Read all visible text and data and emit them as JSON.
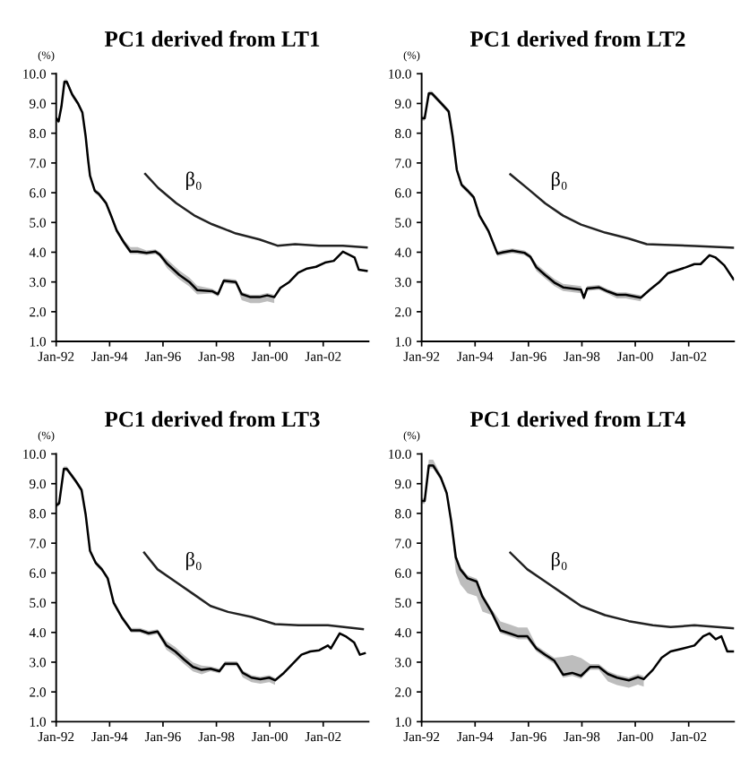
{
  "chart_data": [
    {
      "type": "line",
      "title": "PC1 derived from LT1",
      "ylabel": "(%)",
      "xlim": [
        "1992-01-01",
        "2003-09-13"
      ],
      "ylim": [
        1,
        10
      ],
      "xticks": [
        {
          "value": "1992-01-01",
          "label": "Jan-92"
        },
        {
          "value": "1994-01-01",
          "label": "Jan-94"
        },
        {
          "value": "1996-01-01",
          "label": "Jan-96"
        },
        {
          "value": "1998-01-01",
          "label": "Jan-98"
        },
        {
          "value": "2000-01-01",
          "label": "Jan-00"
        },
        {
          "value": "2002-01-01",
          "label": "Jan-02"
        }
      ],
      "yticks": [
        {
          "value": 1,
          "label": "1.0"
        },
        {
          "value": 2,
          "label": "2.0"
        },
        {
          "value": 3,
          "label": "3.0"
        },
        {
          "value": 4,
          "label": "4.0"
        },
        {
          "value": 5,
          "label": "5.0"
        },
        {
          "value": 6,
          "label": "6.0"
        },
        {
          "value": 7,
          "label": "7.0"
        },
        {
          "value": 8,
          "label": "8.0"
        },
        {
          "value": 9,
          "label": "9.0"
        },
        {
          "value": 10,
          "label": "10.0"
        }
      ],
      "grid": false,
      "annotations": [
        "β₀"
      ],
      "series": [
        {
          "color": "#000000",
          "x": [
            "1992-01-01",
            "1992-02-03",
            "1992-03-13",
            "1992-04-23",
            "1992-05-25",
            "1992-08-07",
            "1992-10-26",
            "1992-12-24",
            "1993-02-07",
            "1993-03-13",
            "1993-04-08",
            "1993-06-13",
            "1993-08-07",
            "1993-11-14",
            "1994-01-19",
            "1994-04-08",
            "1994-07-15",
            "1994-10-12",
            "1995-01-19",
            "1995-05-21",
            "1995-09-20",
            "1995-11-18",
            "1996-02-28",
            "1996-08-11",
            "1996-12-27",
            "1997-04-12",
            "1997-11-03",
            "1998-01-23",
            "1998-04-12",
            "1998-09-24",
            "1998-12-13",
            "1999-04-12",
            "1999-08-14",
            "1999-11-28",
            "2000-03-02",
            "2000-05-25",
            "2000-09-24",
            "2001-01-23",
            "2001-05-25",
            "2001-09-24",
            "2002-01-26",
            "2002-05-25",
            "2002-09-27",
            "2002-12-17",
            "2003-03-06",
            "2003-05-03",
            "2003-08-18"
          ],
          "values": [
            8.5,
            8.4,
            8.9,
            9.73,
            9.73,
            9.3,
            9.0,
            8.7,
            7.9,
            7.1,
            6.57,
            6.06,
            5.96,
            5.65,
            5.24,
            4.73,
            4.33,
            4.02,
            4.02,
            3.98,
            4.02,
            3.92,
            3.61,
            3.24,
            3.0,
            2.73,
            2.69,
            2.59,
            3.04,
            3.0,
            2.59,
            2.49,
            2.49,
            2.55,
            2.49,
            2.8,
            3.0,
            3.31,
            3.45,
            3.51,
            3.65,
            3.71,
            4.02,
            3.92,
            3.82,
            3.41,
            3.37
          ],
          "lower": [
            8.42,
            8.32,
            8.82,
            9.65,
            9.65,
            9.22,
            8.92,
            8.62,
            7.82,
            7.02,
            6.49,
            5.98,
            5.88,
            5.57,
            5.16,
            4.65,
            4.25,
            3.94,
            3.94,
            3.9,
            3.94,
            3.84,
            3.46,
            3.09,
            2.85,
            2.58,
            2.61,
            2.51,
            2.96,
            2.92,
            2.39,
            2.29,
            2.29,
            2.35,
            2.29,
            null,
            null,
            null,
            null,
            null,
            null,
            null,
            null,
            null,
            null,
            null,
            null
          ],
          "upper": [
            8.58,
            8.48,
            8.98,
            9.81,
            9.81,
            9.38,
            9.08,
            8.78,
            7.98,
            7.18,
            6.65,
            6.14,
            6.04,
            5.73,
            5.32,
            4.81,
            4.41,
            4.17,
            4.17,
            4.06,
            4.1,
            4.0,
            3.76,
            3.39,
            3.15,
            2.88,
            2.77,
            2.67,
            3.12,
            3.08,
            2.67,
            2.57,
            2.57,
            2.63,
            2.57,
            null,
            null,
            null,
            null,
            null,
            null,
            null,
            null,
            null,
            null,
            null,
            null
          ]
        },
        {
          "color": "#222222",
          "x": [
            "1995-05-03",
            "1995-10-28",
            "1996-07-01",
            "1997-03-02",
            "1997-11-03",
            "1998-09-24",
            "1999-08-14",
            "2000-04-15",
            "2000-12-13",
            "2001-11-03",
            "2002-09-27",
            "2003-08-18"
          ],
          "values": [
            6.63,
            6.16,
            5.65,
            5.24,
            4.94,
            4.63,
            4.43,
            4.22,
            4.27,
            4.22,
            4.22,
            4.16
          ]
        }
      ]
    },
    {
      "type": "line",
      "title": "PC1 derived from LT2",
      "ylabel": "(%)",
      "xlim": [
        "1992-01-01",
        "2003-09-13"
      ],
      "ylim": [
        1,
        10
      ],
      "xticks": [
        {
          "value": "1992-01-01",
          "label": "Jan-92"
        },
        {
          "value": "1994-01-01",
          "label": "Jan-94"
        },
        {
          "value": "1996-01-01",
          "label": "Jan-96"
        },
        {
          "value": "1998-01-01",
          "label": "Jan-98"
        },
        {
          "value": "2000-01-01",
          "label": "Jan-00"
        },
        {
          "value": "2002-01-01",
          "label": "Jan-02"
        }
      ],
      "yticks": [
        {
          "value": 1,
          "label": "1.0"
        },
        {
          "value": 2,
          "label": "2.0"
        },
        {
          "value": 3,
          "label": "3.0"
        },
        {
          "value": 4,
          "label": "4.0"
        },
        {
          "value": 5,
          "label": "5.0"
        },
        {
          "value": 6,
          "label": "6.0"
        },
        {
          "value": 7,
          "label": "7.0"
        },
        {
          "value": 8,
          "label": "8.0"
        },
        {
          "value": 9,
          "label": "9.0"
        },
        {
          "value": 10,
          "label": "10.0"
        }
      ],
      "grid": false,
      "annotations": [
        "β₀"
      ],
      "series": [
        {
          "color": "#000000",
          "x": [
            "1992-01-01",
            "1992-02-11",
            "1992-04-08",
            "1992-05-18",
            "1992-09-20",
            "1993-01-05",
            "1993-02-28",
            "1993-04-26",
            "1993-07-01",
            "1993-09-20",
            "1993-12-13",
            "1994-03-02",
            "1994-07-01",
            "1994-11-03",
            "1995-01-23",
            "1995-05-25",
            "1995-11-07",
            "1996-01-26",
            "1996-04-19",
            "1996-08-18",
            "1996-12-20",
            "1997-04-19",
            "1997-08-21",
            "1997-12-20",
            "1998-01-28",
            "1998-03-13",
            "1998-08-21",
            "1998-12-24",
            "1999-04-26",
            "1999-08-25",
            "1999-12-27",
            "2000-03-17",
            "2000-07-19",
            "2000-11-18",
            "2001-03-20",
            "2001-07-19",
            "2001-11-21",
            "2002-03-20",
            "2002-06-13",
            "2002-10-12",
            "2003-01-05",
            "2003-05-03",
            "2003-09-06"
          ],
          "values": [
            8.5,
            8.5,
            9.34,
            9.34,
            9.02,
            8.73,
            7.9,
            6.77,
            6.26,
            6.07,
            5.85,
            5.23,
            4.72,
            3.95,
            4.0,
            4.05,
            3.98,
            3.85,
            3.49,
            3.23,
            2.98,
            2.82,
            2.78,
            2.74,
            2.47,
            2.78,
            2.82,
            2.68,
            2.57,
            2.57,
            2.51,
            2.47,
            2.74,
            2.98,
            3.29,
            3.39,
            3.49,
            3.6,
            3.6,
            3.9,
            3.82,
            3.56,
            3.09
          ],
          "lower": [
            8.42,
            8.42,
            9.26,
            9.26,
            8.94,
            8.65,
            7.82,
            6.69,
            6.18,
            5.99,
            5.77,
            5.15,
            4.64,
            3.87,
            3.92,
            3.97,
            3.9,
            3.77,
            3.37,
            3.11,
            2.86,
            2.7,
            2.66,
            2.62,
            2.39,
            2.7,
            2.74,
            2.6,
            2.45,
            2.45,
            2.39,
            2.35,
            null,
            null,
            null,
            null,
            null,
            null,
            null,
            null,
            null,
            null,
            null
          ],
          "upper": [
            8.58,
            8.58,
            9.42,
            9.42,
            9.1,
            8.81,
            7.98,
            6.85,
            6.34,
            6.15,
            5.93,
            5.31,
            4.8,
            4.03,
            4.08,
            4.13,
            4.06,
            3.93,
            3.61,
            3.35,
            3.1,
            2.94,
            2.9,
            2.86,
            2.55,
            2.86,
            2.9,
            2.76,
            2.65,
            2.65,
            2.59,
            2.55,
            null,
            null,
            null,
            null,
            null,
            null,
            null,
            null,
            null,
            null,
            null
          ]
        },
        {
          "color": "#222222",
          "x": [
            "1995-04-28",
            "1995-12-17",
            "1996-08-18",
            "1997-04-19",
            "1997-12-20",
            "1998-11-14",
            "1999-10-05",
            "2000-06-06",
            "2001-02-07",
            "2002-03-20",
            "2003-09-06"
          ],
          "values": [
            6.62,
            6.15,
            5.64,
            5.23,
            4.93,
            4.66,
            4.46,
            4.27,
            4.25,
            4.21,
            4.15
          ]
        }
      ]
    },
    {
      "type": "line",
      "title": "PC1 derived from LT3",
      "ylabel": "(%)",
      "xlim": [
        "1992-01-01",
        "2003-09-13"
      ],
      "ylim": [
        1,
        10
      ],
      "xticks": [
        {
          "value": "1992-01-01",
          "label": "Jan-92"
        },
        {
          "value": "1994-01-01",
          "label": "Jan-94"
        },
        {
          "value": "1996-01-01",
          "label": "Jan-96"
        },
        {
          "value": "1998-01-01",
          "label": "Jan-98"
        },
        {
          "value": "2000-01-01",
          "label": "Jan-00"
        },
        {
          "value": "2002-01-01",
          "label": "Jan-02"
        }
      ],
      "yticks": [
        {
          "value": 1,
          "label": "1.0"
        },
        {
          "value": 2,
          "label": "2.0"
        },
        {
          "value": 3,
          "label": "3.0"
        },
        {
          "value": 4,
          "label": "4.0"
        },
        {
          "value": 5,
          "label": "5.0"
        },
        {
          "value": 6,
          "label": "6.0"
        },
        {
          "value": 7,
          "label": "7.0"
        },
        {
          "value": 8,
          "label": "8.0"
        },
        {
          "value": 9,
          "label": "9.0"
        },
        {
          "value": 10,
          "label": "10.0"
        }
      ],
      "grid": false,
      "annotations": [
        "β₀"
      ],
      "series": [
        {
          "color": "#000000",
          "x": [
            "1992-01-01",
            "1992-02-11",
            "1992-04-15",
            "1992-05-25",
            "1992-09-24",
            "1992-12-13",
            "1993-02-07",
            "1993-04-08",
            "1993-06-27",
            "1993-09-17",
            "1993-12-06",
            "1994-02-25",
            "1994-06-24",
            "1994-10-23",
            "1995-02-21",
            "1995-06-20",
            "1995-10-19",
            "1996-02-18",
            "1996-06-17",
            "1996-10-15",
            "1997-02-14",
            "1997-06-13",
            "1997-10-12",
            "1998-02-11",
            "1998-04-28",
            "1998-10-08",
            "1998-12-27",
            "1999-04-26",
            "1999-08-25",
            "1999-12-24",
            "2000-03-13",
            "2000-07-12",
            "2000-11-11",
            "2001-03-09",
            "2001-07-08",
            "2001-11-07",
            "2002-03-06",
            "2002-04-15",
            "2002-08-14",
            "2002-11-03",
            "2003-02-28",
            "2003-05-18",
            "2003-07-23"
          ],
          "values": [
            8.27,
            8.34,
            9.5,
            9.5,
            9.09,
            8.79,
            7.97,
            6.74,
            6.33,
            6.12,
            5.82,
            5.0,
            4.48,
            4.07,
            4.07,
            3.97,
            4.03,
            3.56,
            3.36,
            3.09,
            2.84,
            2.74,
            2.78,
            2.7,
            2.95,
            2.95,
            2.64,
            2.48,
            2.43,
            2.48,
            2.39,
            2.64,
            2.95,
            3.25,
            3.36,
            3.4,
            3.56,
            3.46,
            3.97,
            3.87,
            3.66,
            3.25,
            3.3
          ],
          "lower": [
            8.19,
            8.26,
            9.42,
            9.42,
            9.01,
            8.71,
            7.89,
            6.66,
            6.25,
            6.04,
            5.74,
            4.92,
            4.4,
            3.99,
            3.99,
            3.89,
            3.95,
            3.41,
            3.21,
            2.94,
            2.69,
            2.59,
            2.7,
            2.62,
            2.87,
            2.87,
            2.49,
            2.33,
            2.28,
            2.33,
            2.24,
            null,
            null,
            null,
            null,
            null,
            null,
            null,
            null,
            null,
            null,
            null,
            null
          ],
          "upper": [
            8.35,
            8.42,
            9.58,
            9.58,
            9.17,
            8.87,
            8.05,
            6.82,
            6.41,
            6.2,
            5.9,
            5.08,
            4.56,
            4.15,
            4.15,
            4.05,
            4.11,
            3.71,
            3.51,
            3.24,
            2.99,
            2.89,
            2.86,
            2.78,
            3.03,
            3.03,
            2.72,
            2.56,
            2.51,
            2.56,
            2.47,
            null,
            null,
            null,
            null,
            null,
            null,
            null,
            null,
            null,
            null,
            null,
            null
          ]
        },
        {
          "color": "#222222",
          "x": [
            "1995-04-19",
            "1995-10-19",
            "1996-06-17",
            "1997-02-14",
            "1997-10-12",
            "1998-06-09",
            "1999-04-26",
            "2000-03-13",
            "2001-01-28",
            "2002-03-06",
            "2003-06-27"
          ],
          "values": [
            6.68,
            6.12,
            5.71,
            5.3,
            4.89,
            4.69,
            4.52,
            4.28,
            4.24,
            4.24,
            4.11
          ]
        }
      ]
    },
    {
      "type": "line",
      "title": "PC1 derived from LT4",
      "ylabel": "(%)",
      "xlim": [
        "1992-01-01",
        "2003-09-13"
      ],
      "ylim": [
        1,
        10
      ],
      "xticks": [
        {
          "value": "1992-01-01",
          "label": "Jan-92"
        },
        {
          "value": "1994-01-01",
          "label": "Jan-94"
        },
        {
          "value": "1996-01-01",
          "label": "Jan-96"
        },
        {
          "value": "1998-01-01",
          "label": "Jan-98"
        },
        {
          "value": "2000-01-01",
          "label": "Jan-00"
        },
        {
          "value": "2002-01-01",
          "label": "Jan-02"
        }
      ],
      "yticks": [
        {
          "value": 1,
          "label": "1.0"
        },
        {
          "value": 2,
          "label": "2.0"
        },
        {
          "value": 3,
          "label": "3.0"
        },
        {
          "value": 4,
          "label": "4.0"
        },
        {
          "value": 5,
          "label": "5.0"
        },
        {
          "value": 6,
          "label": "6.0"
        },
        {
          "value": 7,
          "label": "7.0"
        },
        {
          "value": 8,
          "label": "8.0"
        },
        {
          "value": 9,
          "label": "9.0"
        },
        {
          "value": 10,
          "label": "10.0"
        }
      ],
      "grid": false,
      "annotations": [
        "β₀"
      ],
      "series": [
        {
          "color": "#000000",
          "x": [
            "1992-01-01",
            "1992-02-11",
            "1992-04-08",
            "1992-06-06",
            "1992-09-20",
            "1992-12-09",
            "1993-02-07",
            "1993-04-12",
            "1993-06-13",
            "1993-09-20",
            "1994-01-23",
            "1994-04-12",
            "1994-08-14",
            "1994-12-13",
            "1995-04-15",
            "1995-08-14",
            "1995-12-17",
            "1996-04-19",
            "1996-08-18",
            "1996-12-20",
            "1997-04-19",
            "1997-08-21",
            "1997-12-20",
            "1998-04-23",
            "1998-08-21",
            "1998-12-24",
            "1999-04-26",
            "1999-10-05",
            "2000-02-07",
            "2000-04-26",
            "2000-08-28",
            "2000-12-27",
            "2001-04-28",
            "2001-10-12",
            "2002-03-20",
            "2002-07-18",
            "2002-10-12",
            "2003-01-05",
            "2003-03-24",
            "2003-06-13",
            "2003-09-06"
          ],
          "values": [
            8.42,
            8.42,
            9.61,
            9.61,
            9.2,
            8.68,
            7.76,
            6.53,
            6.12,
            5.82,
            5.71,
            5.2,
            4.69,
            4.07,
            3.97,
            3.87,
            3.87,
            3.46,
            3.25,
            3.05,
            2.58,
            2.64,
            2.54,
            2.84,
            2.84,
            2.6,
            2.48,
            2.39,
            2.5,
            2.43,
            2.74,
            3.15,
            3.36,
            3.46,
            3.56,
            3.87,
            3.97,
            3.77,
            3.87,
            3.36,
            3.36
          ],
          "lower": [
            8.32,
            8.32,
            9.51,
            9.51,
            9.1,
            8.58,
            7.66,
            6.03,
            5.62,
            5.32,
            5.21,
            4.7,
            4.59,
            3.97,
            3.87,
            3.77,
            3.77,
            3.36,
            3.15,
            2.95,
            2.48,
            2.54,
            2.44,
            2.74,
            2.74,
            2.35,
            2.23,
            2.14,
            2.25,
            2.18,
            null,
            null,
            null,
            null,
            null,
            null,
            null,
            null,
            null,
            null,
            null
          ],
          "upper": [
            8.52,
            8.52,
            9.81,
            9.81,
            9.3,
            8.78,
            7.86,
            6.63,
            6.22,
            5.92,
            5.81,
            5.3,
            4.79,
            4.37,
            4.27,
            4.17,
            4.17,
            3.56,
            3.35,
            3.15,
            3.18,
            3.24,
            3.14,
            2.94,
            2.94,
            2.7,
            2.58,
            2.49,
            2.6,
            2.53,
            null,
            null,
            null,
            null,
            null,
            null,
            null,
            null,
            null,
            null,
            null
          ]
        },
        {
          "color": "#222222",
          "x": [
            "1995-04-28",
            "1995-12-17",
            "1996-08-18",
            "1997-04-19",
            "1997-12-20",
            "1998-11-14",
            "1999-10-05",
            "2000-08-28",
            "2001-04-28",
            "2002-03-20",
            "2003-09-06"
          ],
          "values": [
            6.68,
            6.12,
            5.71,
            5.3,
            4.89,
            4.58,
            4.38,
            4.24,
            4.18,
            4.24,
            4.14
          ]
        }
      ]
    }
  ]
}
